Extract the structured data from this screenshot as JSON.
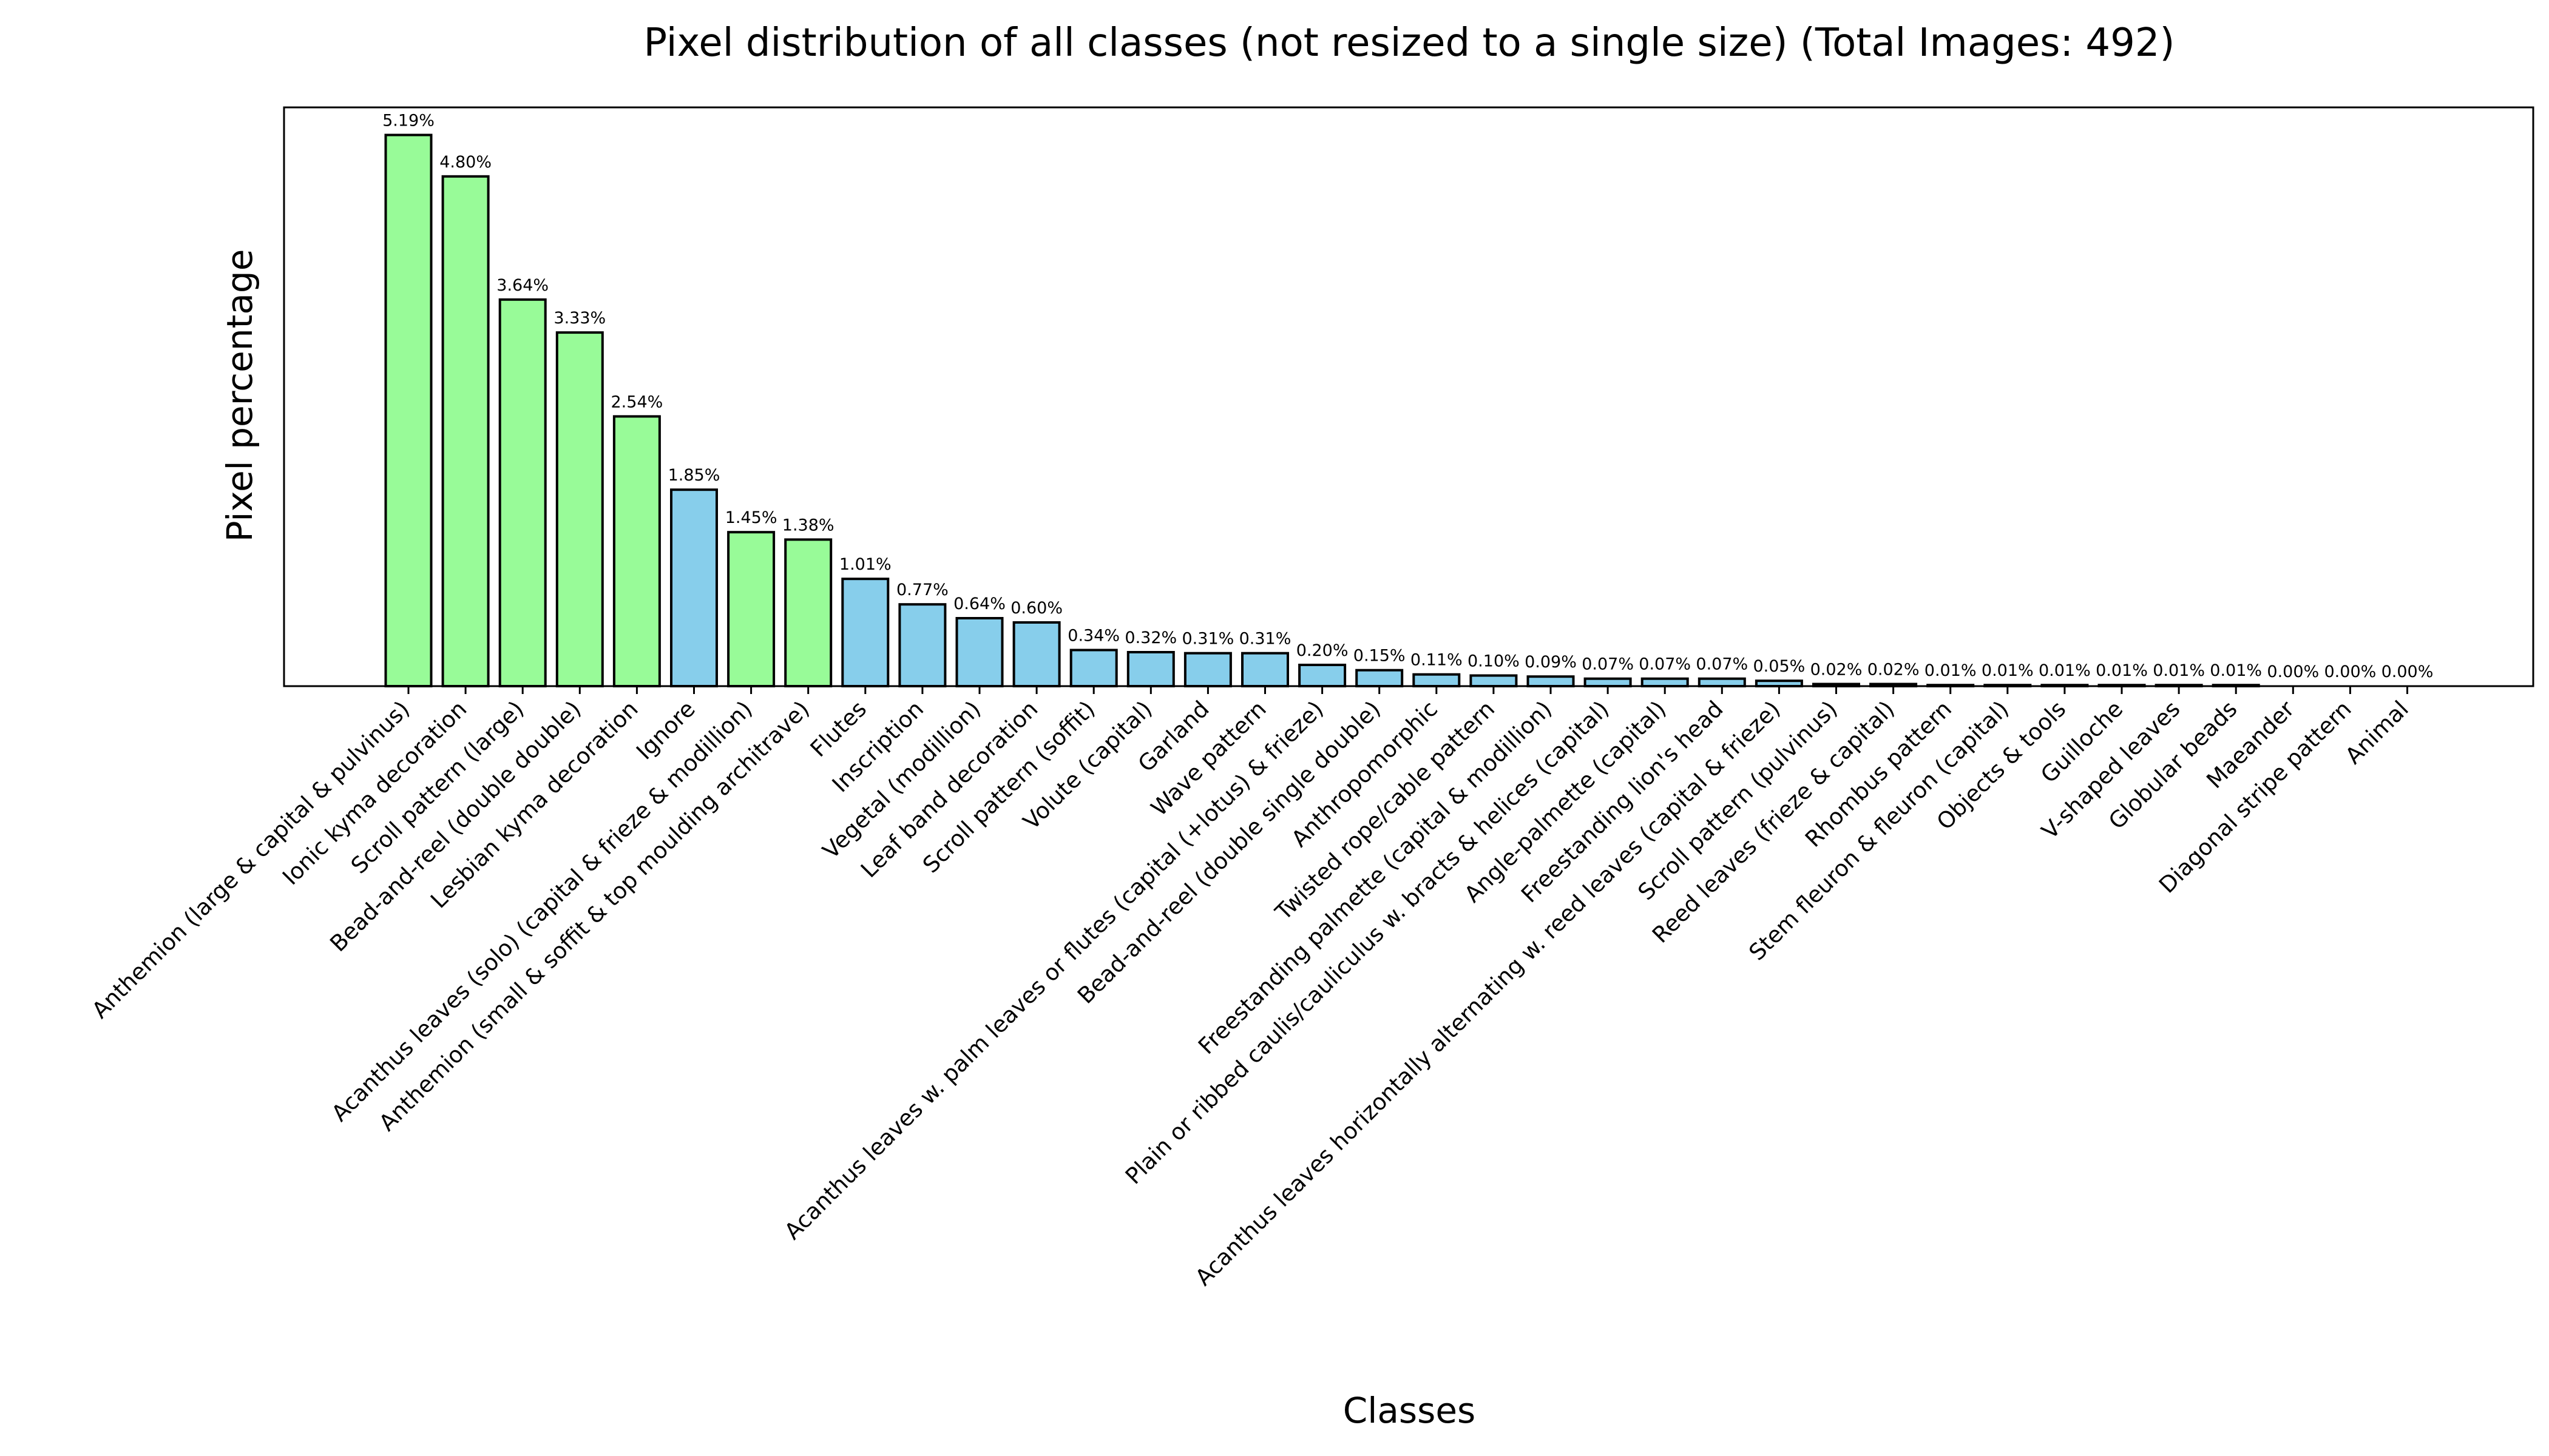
{
  "chart_data": {
    "type": "bar",
    "title": "Pixel distribution of all classes (not resized to a single size) (Total Images: 492)",
    "xlabel": "Classes",
    "ylabel": "Pixel percentage",
    "ylim": [
      0,
      5.45
    ],
    "grid": false,
    "y_ticks_visible": false,
    "colors": {
      "highlight": "#98FB98",
      "default": "#87CEEB",
      "edge": "#000000"
    },
    "categories": [
      "Anthemion (large & capital & pulvinus)",
      "Ionic kyma decoration",
      "Scroll pattern (large)",
      "Bead-and-reel (double double)",
      "Lesbian kyma decoration",
      "Ignore",
      "Acanthus leaves (solo) (capital & frieze & modillion)",
      "Anthemion (small & soffit & top moulding architrave)",
      "Flutes",
      "Inscription",
      "Vegetal (modillion)",
      "Leaf band decoration",
      "Scroll pattern (soffit)",
      "Volute (capital)",
      "Garland",
      "Wave pattern",
      "Acanthus leaves w. palm leaves or flutes (capital (+lotus) & frieze)",
      "Bead-and-reel (double single double)",
      "Anthropomorphic",
      "Twisted rope/cable pattern",
      "Freestanding palmette (capital & modillion)",
      "Plain or ribbed caulis/cauliculus w. bracts & helices (capital)",
      "Angle-palmette (capital)",
      "Freestanding lion's head",
      "Acanthus leaves horizontally alternating w. reed leaves (capital & frieze)",
      "Scroll pattern (pulvinus)",
      "Reed leaves (frieze & capital)",
      "Rhombus pattern",
      "Stem fleuron & fleuron (capital)",
      "Objects & tools",
      "Guilloche",
      "V-shaped leaves",
      "Globular beads",
      "Maeander",
      "Diagonal stripe pattern",
      "Animal"
    ],
    "values": [
      5.19,
      4.8,
      3.64,
      3.33,
      2.54,
      1.85,
      1.45,
      1.38,
      1.01,
      0.77,
      0.64,
      0.6,
      0.34,
      0.32,
      0.31,
      0.31,
      0.2,
      0.15,
      0.11,
      0.1,
      0.09,
      0.07,
      0.07,
      0.07,
      0.05,
      0.02,
      0.02,
      0.01,
      0.01,
      0.01,
      0.01,
      0.01,
      0.01,
      0.0,
      0.0,
      0.0
    ],
    "value_labels": [
      "5.19%",
      "4.80%",
      "3.64%",
      "3.33%",
      "2.54%",
      "1.85%",
      "1.45%",
      "1.38%",
      "1.01%",
      "0.77%",
      "0.64%",
      "0.60%",
      "0.34%",
      "0.32%",
      "0.31%",
      "0.31%",
      "0.20%",
      "0.15%",
      "0.11%",
      "0.10%",
      "0.09%",
      "0.07%",
      "0.07%",
      "0.07%",
      "0.05%",
      "0.02%",
      "0.02%",
      "0.01%",
      "0.01%",
      "0.01%",
      "0.01%",
      "0.01%",
      "0.01%",
      "0.00%",
      "0.00%",
      "0.00%"
    ],
    "highlighted": [
      true,
      true,
      true,
      true,
      true,
      false,
      true,
      true,
      false,
      false,
      false,
      false,
      false,
      false,
      false,
      false,
      false,
      false,
      false,
      false,
      false,
      false,
      false,
      false,
      false,
      false,
      false,
      false,
      false,
      false,
      false,
      false,
      false,
      false,
      false,
      false
    ]
  }
}
